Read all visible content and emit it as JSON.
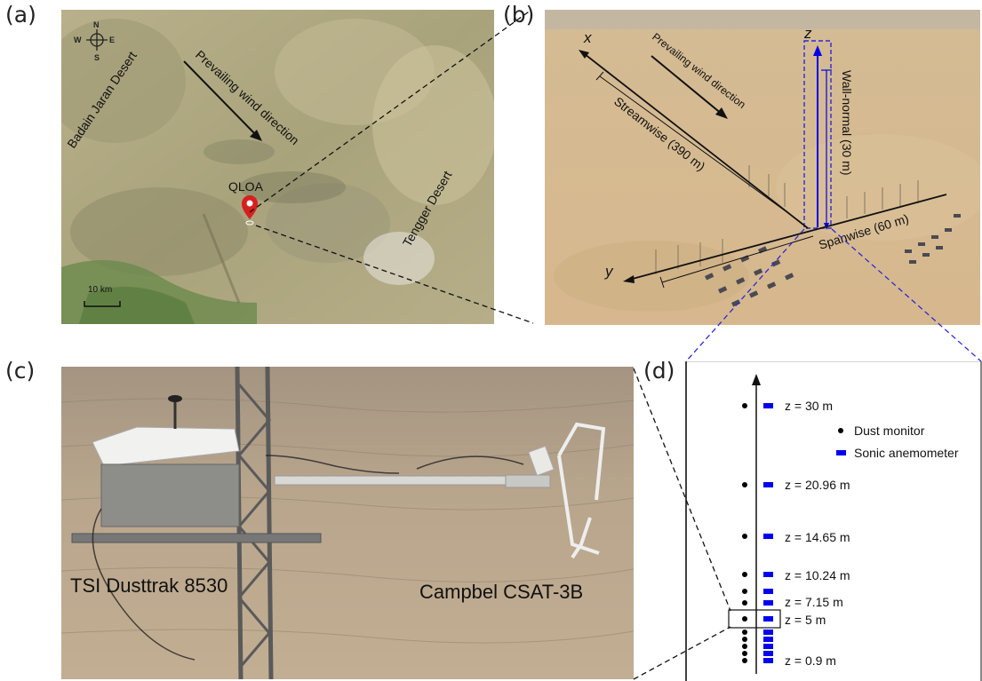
{
  "panels": {
    "a": {
      "label": "(a)",
      "compass": {
        "n": "N",
        "s": "S",
        "e": "E",
        "w": "W"
      },
      "text_badain": "Badain Jaran Desert",
      "text_wind": "Prevailing wind direction",
      "text_qloa": "QLOA",
      "text_tengger": "Tengger Desert",
      "text_scale": "10 km"
    },
    "b": {
      "label": "(b)",
      "axis_x": "x",
      "axis_y": "y",
      "axis_z": "z",
      "text_wind": "Prevailing wind direction",
      "text_streamwise": "Streamwise (390 m)",
      "text_wallnormal": "Wall-normal (30 m)",
      "text_spanwise": "Spanwise (60 m)"
    },
    "c": {
      "label": "(c)",
      "text_tsi": "TSI Dusttrak 8530",
      "text_campbel": "Campbel CSAT-3B"
    },
    "d": {
      "label": "(d)",
      "legend_dust": "Dust monitor",
      "legend_sonic": "Sonic anemometer",
      "heights": {
        "h30": "z = 30 m",
        "h2096": "z = 20.96 m",
        "h1465": "z = 14.65 m",
        "h1024": "z = 10.24 m",
        "h715": "z = 7.15 m",
        "h5": "z = 5 m",
        "h09": "z = 0.9 m"
      }
    }
  },
  "colors": {
    "sonic_blue": "#0000ee",
    "marker_red": "#d62020",
    "dashed_blue": "#2a2ad8"
  }
}
